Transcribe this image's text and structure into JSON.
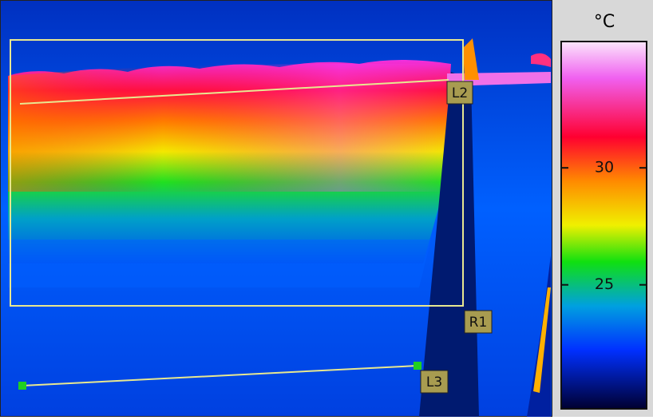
{
  "scale": {
    "unit": "°C",
    "range": [
      19.7,
      35.4
    ],
    "ticks": [
      25,
      30
    ]
  },
  "annotations": {
    "region": "R1",
    "line_top": "L2",
    "line_bottom": "L3"
  }
}
